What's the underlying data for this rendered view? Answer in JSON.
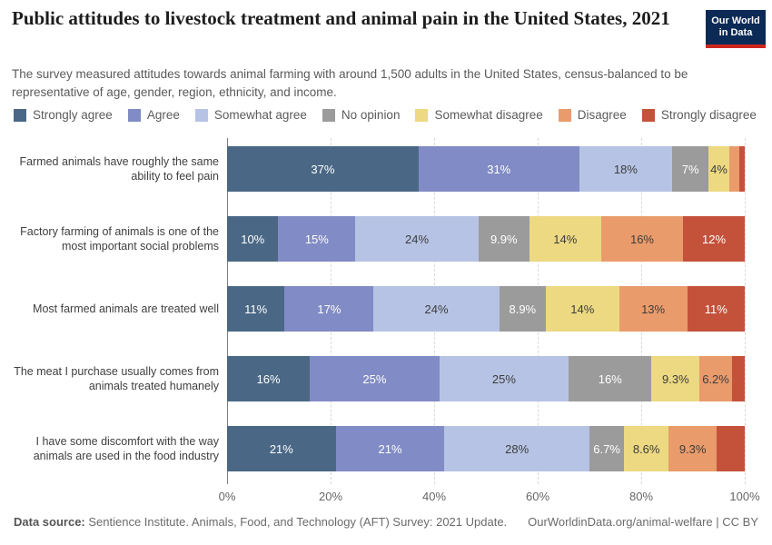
{
  "header": {
    "title": "Public attitudes to livestock treatment and animal pain in the United States, 2021",
    "subtitle": "The survey measured attitudes towards animal farming with around 1,500 adults in the United States, census-balanced to be representative of age, gender, region, ethnicity, and income.",
    "logo": {
      "line1": "Our World",
      "line2": "in Data",
      "bg_color": "#0b2a56",
      "accent_color": "#ce261e"
    }
  },
  "chart_data": {
    "type": "bar",
    "stacked": true,
    "orientation": "horizontal",
    "title": "Public attitudes to livestock treatment and animal pain in the United States, 2021",
    "legend_position": "top",
    "grid": "vertical-dashed",
    "xlim": [
      0,
      100
    ],
    "x_ticks": [
      "0%",
      "20%",
      "40%",
      "60%",
      "80%",
      "100%"
    ],
    "categories": [
      "Farmed animals have roughly the same ability to feel pain",
      "Factory farming of animals is one of the most important social problems",
      "Most farmed animals are treated well",
      "The meat I purchase usually comes from animals treated humanely",
      "I have some discomfort with the way animals are used in the food industry"
    ],
    "series": [
      {
        "name": "Strongly agree",
        "color": "#4a6885",
        "label_color": "#ffffff",
        "values": [
          37,
          10,
          11,
          16,
          21
        ],
        "labels": [
          "37%",
          "10%",
          "11%",
          "16%",
          "21%"
        ]
      },
      {
        "name": "Agree",
        "color": "#818bc5",
        "label_color": "#ffffff",
        "values": [
          31,
          15,
          17,
          25,
          21
        ],
        "labels": [
          "31%",
          "15%",
          "17%",
          "25%",
          "21%"
        ]
      },
      {
        "name": "Somewhat agree",
        "color": "#b6c3e4",
        "label_color": "#3d3d3d",
        "values": [
          18,
          24,
          24,
          25,
          28
        ],
        "labels": [
          "18%",
          "24%",
          "24%",
          "25%",
          "28%"
        ]
      },
      {
        "name": "No opinion",
        "color": "#9b9b9b",
        "label_color": "#ffffff",
        "values": [
          7,
          9.9,
          8.9,
          16,
          6.7
        ],
        "labels": [
          "7%",
          "9.9%",
          "8.9%",
          "16%",
          "6.7%"
        ]
      },
      {
        "name": "Somewhat disagree",
        "color": "#ecd981",
        "label_color": "#3d3d3d",
        "values": [
          4,
          14,
          14,
          9.3,
          8.6
        ],
        "labels": [
          "4%",
          "14%",
          "14%",
          "9.3%",
          "8.6%"
        ]
      },
      {
        "name": "Disagree",
        "color": "#e99b6b",
        "label_color": "#3d3d3d",
        "values": [
          2,
          16,
          13,
          6.2,
          9.3
        ],
        "labels": [
          "",
          "16%",
          "13%",
          "6.2%",
          "9.3%"
        ]
      },
      {
        "name": "Strongly disagree",
        "color": "#c4523b",
        "label_color": "#ffffff",
        "values": [
          1,
          12,
          11,
          2.5,
          5.4
        ],
        "labels": [
          "",
          "12%",
          "11%",
          "",
          ""
        ]
      }
    ]
  },
  "footer": {
    "source_label": "Data source:",
    "source_text": " Sentience Institute. Animals, Food, and Technology (AFT) Survey: 2021 Update.",
    "link_text": "OurWorldinData.org/animal-welfare | CC BY"
  }
}
